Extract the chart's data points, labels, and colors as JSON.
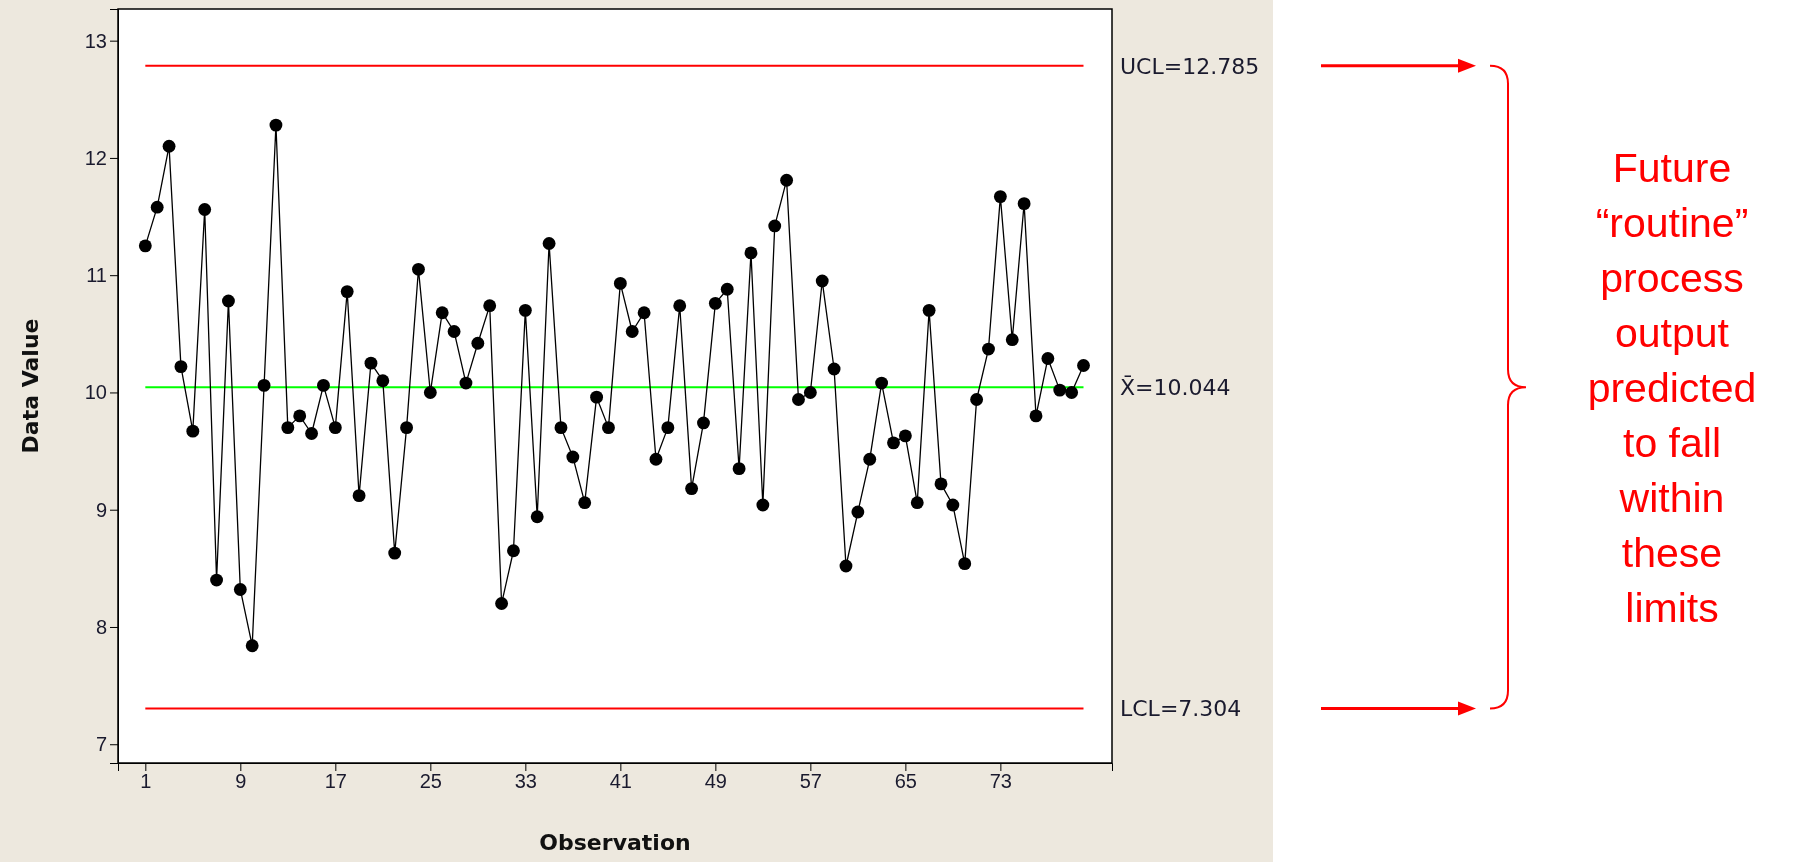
{
  "chart_data": {
    "type": "line",
    "xlabel": "Observation",
    "ylabel": "Data Value",
    "x": [
      1,
      2,
      3,
      4,
      5,
      6,
      7,
      8,
      9,
      10,
      11,
      12,
      13,
      14,
      15,
      16,
      17,
      18,
      19,
      20,
      21,
      22,
      23,
      24,
      25,
      26,
      27,
      28,
      29,
      30,
      31,
      32,
      33,
      34,
      35,
      36,
      37,
      38,
      39,
      40,
      41,
      42,
      43,
      44,
      45,
      46,
      47,
      48,
      49,
      50,
      51,
      52,
      53,
      54,
      55,
      56,
      57,
      58,
      59,
      60,
      61,
      62,
      63,
      64,
      65,
      66,
      67,
      68,
      69,
      70,
      71,
      72,
      73,
      74,
      75,
      76,
      77,
      78,
      79,
      80
    ],
    "series": [
      {
        "color": "#000000",
        "values": [
          11.25,
          11.58,
          12.1,
          10.22,
          9.67,
          11.56,
          8.4,
          10.78,
          8.32,
          7.84,
          10.06,
          12.28,
          9.7,
          9.8,
          9.65,
          10.06,
          9.7,
          10.86,
          9.12,
          10.25,
          10.1,
          8.63,
          9.7,
          11.05,
          10.0,
          10.68,
          10.52,
          10.08,
          10.42,
          10.74,
          8.2,
          8.65,
          10.7,
          8.94,
          11.27,
          9.7,
          9.45,
          9.06,
          9.96,
          9.7,
          10.93,
          10.52,
          10.68,
          9.43,
          9.7,
          10.74,
          9.18,
          9.74,
          10.76,
          10.88,
          9.35,
          11.19,
          9.04,
          11.42,
          11.81,
          9.94,
          10.0,
          10.95,
          10.2,
          8.52,
          8.98,
          9.43,
          10.08,
          9.57,
          9.63,
          9.06,
          10.7,
          9.22,
          9.04,
          8.54,
          9.94,
          10.37,
          11.67,
          10.45,
          11.61,
          9.8,
          10.29,
          10.02,
          10.0,
          10.23
        ]
      }
    ],
    "xlim": [
      -1.3,
      82.4
    ],
    "xticks": [
      1,
      9,
      17,
      25,
      33,
      41,
      49,
      57,
      65,
      73
    ],
    "ylim": [
      6.84,
      13.27
    ],
    "yticks": [
      7,
      8,
      9,
      10,
      11,
      12,
      13
    ],
    "marker": "circle",
    "line_style": "solid",
    "grid": false,
    "ref_lines": [
      {
        "axis": "y",
        "value": 12.785,
        "label": "UCL=12.785",
        "color": "#ff0000"
      },
      {
        "axis": "y",
        "value": 10.044,
        "label": "X̄=10.044",
        "color": "#00ff00"
      },
      {
        "axis": "y",
        "value": 7.304,
        "label": "LCL=7.304",
        "color": "#ff0000"
      }
    ],
    "annotations": [
      "Future “routine” process output predicted to fall within these limits"
    ]
  }
}
